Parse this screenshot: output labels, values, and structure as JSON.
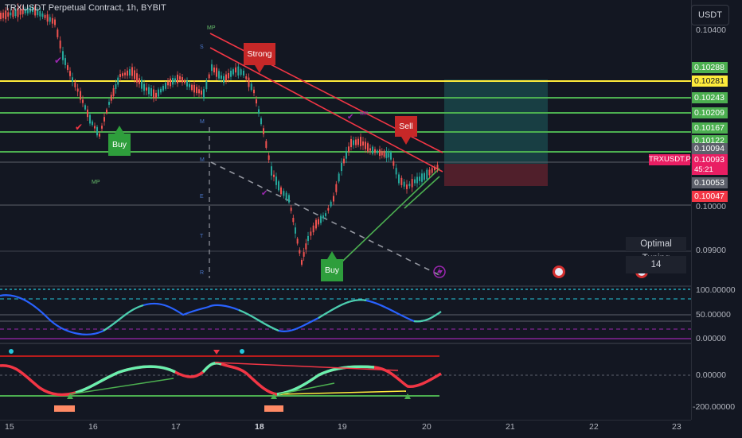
{
  "chart": {
    "title": "TRXUSDT Perpetual Contract, 1h, BYBIT",
    "currency": "USDT",
    "symbol_tag": "TRXUSDT.P",
    "current_price": "0.10093",
    "countdown": "45:21"
  },
  "price_axis": {
    "labels": [
      "0.10400",
      "0.10000",
      "0.09900"
    ],
    "tags": [
      {
        "text": "0.10288",
        "bg": "#4caf50",
        "color": "#ffffff"
      },
      {
        "text": "0.10281",
        "bg": "#ffeb3b",
        "color": "#131722"
      },
      {
        "text": "0.10243",
        "bg": "#4caf50",
        "color": "#ffffff"
      },
      {
        "text": "0.10209",
        "bg": "#4caf50",
        "color": "#ffffff"
      },
      {
        "text": "0.10167",
        "bg": "#4caf50",
        "color": "#ffffff"
      },
      {
        "text": "0.10122",
        "bg": "#4caf50",
        "color": "#ffffff"
      },
      {
        "text": "0.10094",
        "bg": "#5d606b",
        "color": "#ffffff"
      },
      {
        "text": "0.10053",
        "bg": "#5d606b",
        "color": "#ffffff"
      },
      {
        "text": "0.10047",
        "bg": "#f23645",
        "color": "#ffffff"
      }
    ]
  },
  "oscillator_axis": [
    "100.00000",
    "50.00000",
    "0.00000"
  ],
  "momentum_axis": [
    "0.00000",
    "-200.00000"
  ],
  "time_axis": [
    "15",
    "16",
    "17",
    "18",
    "19",
    "20",
    "21",
    "22",
    "23"
  ],
  "signals": {
    "buy": "Buy",
    "sell": "Sell",
    "strong": "Strong"
  },
  "level_markers": [
    "MP",
    "S",
    "M",
    "E",
    "M",
    "T",
    "R",
    "MP",
    "MP"
  ],
  "optimal_tuning": {
    "title": "Optimal Tuning",
    "value": "14"
  },
  "colors": {
    "background": "#131722",
    "green": "#4caf50",
    "yellow": "#ffeb3b",
    "red": "#f23645",
    "pink": "#e91e63",
    "teal": "#26a69a"
  }
}
